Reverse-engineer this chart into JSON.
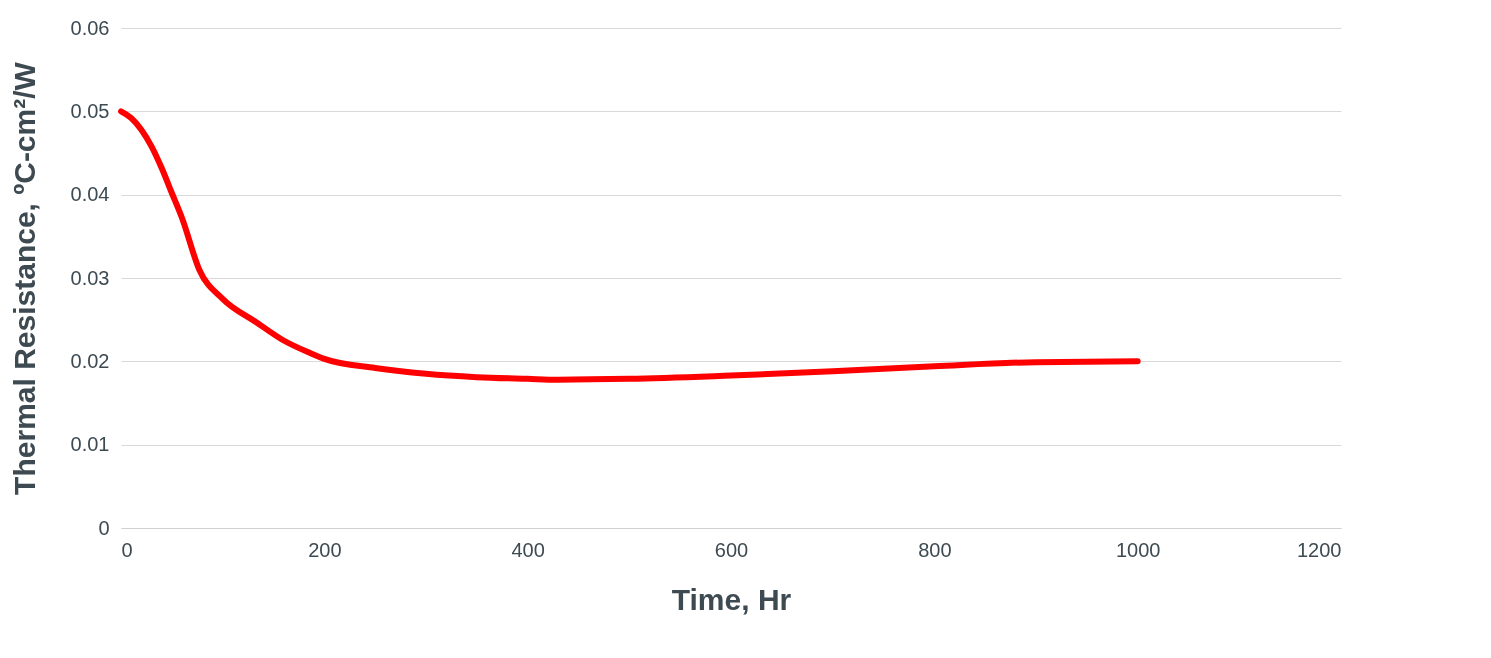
{
  "chart_data": {
    "type": "line",
    "xlabel": "Time, Hr",
    "ylabel": "Thermal Resistance, ºC-cm²/W",
    "x": [
      0,
      10,
      20,
      30,
      40,
      50,
      60,
      77,
      100,
      133,
      160,
      186,
      200,
      250,
      300,
      350,
      400,
      430,
      500,
      600,
      700,
      800,
      900,
      1000
    ],
    "series": [
      {
        "color": "#ff0000",
        "values": [
          0.05,
          0.0492,
          0.0478,
          0.0458,
          0.0432,
          0.0402,
          0.0372,
          0.031,
          0.0275,
          0.0247,
          0.0225,
          0.021,
          0.0203,
          0.0192,
          0.0185,
          0.0181,
          0.0179,
          0.0178,
          0.0179,
          0.0183,
          0.0188,
          0.0194,
          0.0199,
          0.02
        ]
      }
    ],
    "xlim": [
      0,
      1200
    ],
    "xticks": [
      0,
      200,
      400,
      600,
      800,
      1000,
      1200
    ],
    "ylim": [
      0,
      0.06
    ],
    "yticks": [
      0,
      0.01,
      0.02,
      0.03,
      0.04,
      0.05,
      0.06
    ],
    "grid": "y"
  }
}
